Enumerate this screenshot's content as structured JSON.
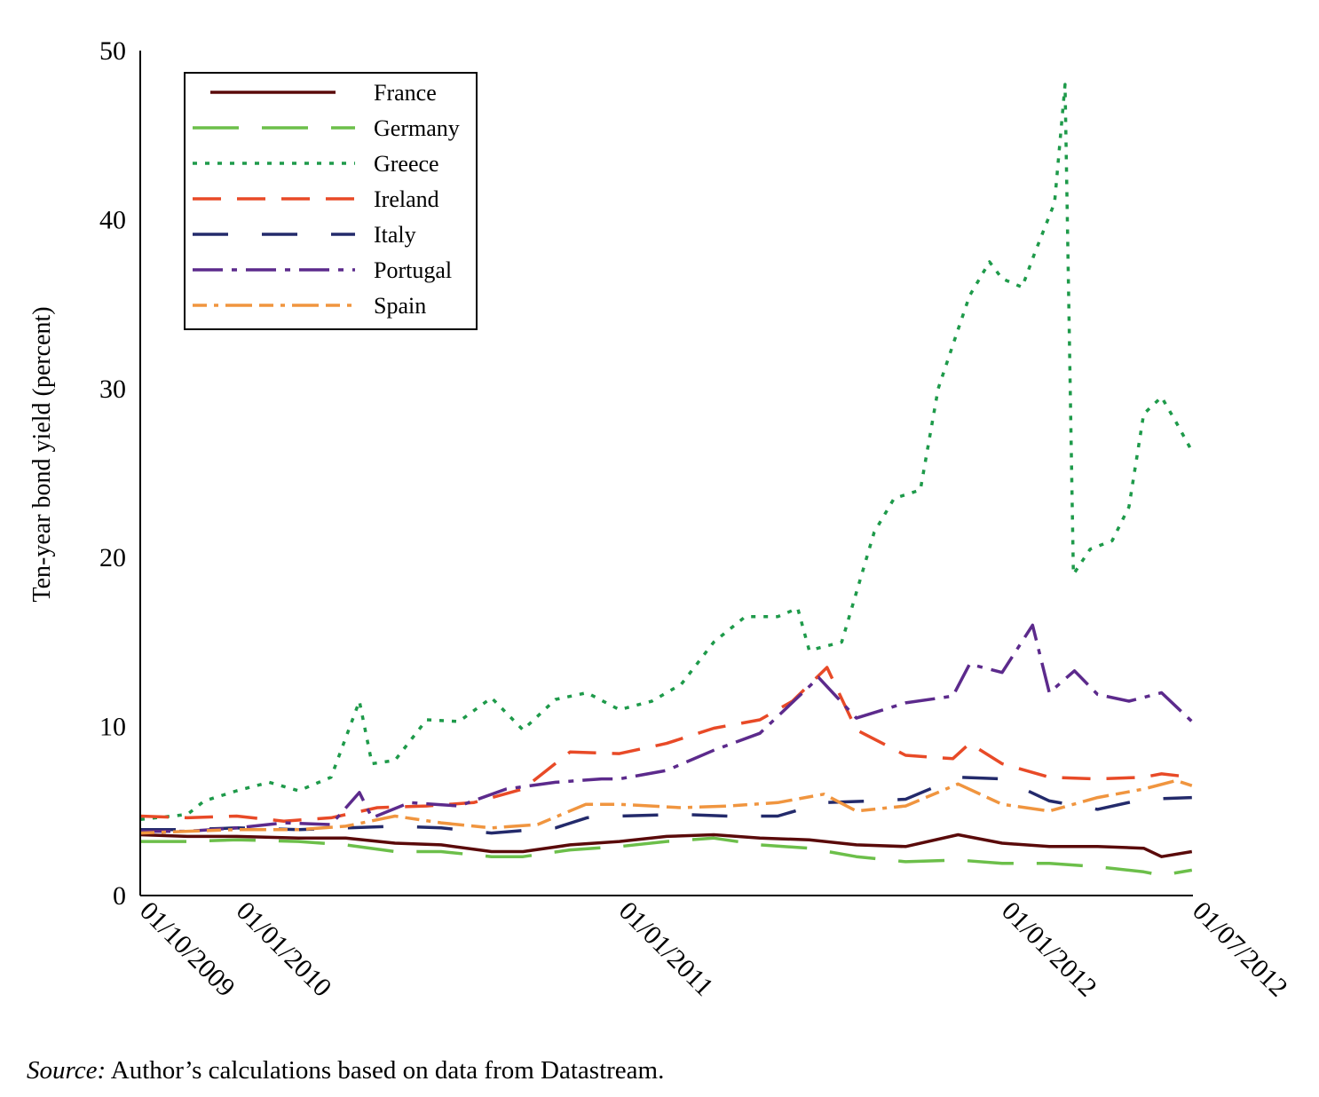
{
  "chart_data": {
    "type": "line",
    "ylabel": "Ten-year bond yield (percent)",
    "xlabel": "",
    "ylim": [
      0,
      50
    ],
    "yticks": [
      0,
      10,
      20,
      30,
      40,
      50
    ],
    "xlim": [
      "2009-10-01",
      "2012-07-01"
    ],
    "xticks": [
      {
        "date": "2009-10-01",
        "label": "01/10/2009"
      },
      {
        "date": "2010-01-01",
        "label": "01/01/2010"
      },
      {
        "date": "2011-01-01",
        "label": "01/01/2011"
      },
      {
        "date": "2012-01-01",
        "label": "01/01/2012"
      },
      {
        "date": "2012-07-01",
        "label": "01/07/2012"
      }
    ],
    "grid": false,
    "legend_position": "top-left",
    "series": [
      {
        "name": "France",
        "color": "#5a0a0a",
        "dash": "solid",
        "points": [
          [
            "2009-10-01",
            3.6
          ],
          [
            "2009-11-15",
            3.5
          ],
          [
            "2010-01-01",
            3.5
          ],
          [
            "2010-03-01",
            3.4
          ],
          [
            "2010-04-15",
            3.4
          ],
          [
            "2010-06-01",
            3.1
          ],
          [
            "2010-07-15",
            3.0
          ],
          [
            "2010-09-01",
            2.6
          ],
          [
            "2010-10-01",
            2.6
          ],
          [
            "2010-11-15",
            3.0
          ],
          [
            "2011-01-01",
            3.2
          ],
          [
            "2011-02-15",
            3.5
          ],
          [
            "2011-04-01",
            3.6
          ],
          [
            "2011-05-15",
            3.4
          ],
          [
            "2011-07-01",
            3.3
          ],
          [
            "2011-08-15",
            3.0
          ],
          [
            "2011-10-01",
            2.9
          ],
          [
            "2011-11-20",
            3.6
          ],
          [
            "2012-01-01",
            3.1
          ],
          [
            "2012-02-15",
            2.9
          ],
          [
            "2012-04-01",
            2.9
          ],
          [
            "2012-05-15",
            2.8
          ],
          [
            "2012-06-01",
            2.3
          ],
          [
            "2012-06-30",
            2.6
          ]
        ]
      },
      {
        "name": "Germany",
        "color": "#6cbf4a",
        "dash": "longdash",
        "points": [
          [
            "2009-10-01",
            3.2
          ],
          [
            "2009-11-15",
            3.2
          ],
          [
            "2010-01-01",
            3.3
          ],
          [
            "2010-03-01",
            3.2
          ],
          [
            "2010-04-15",
            3.0
          ],
          [
            "2010-06-01",
            2.6
          ],
          [
            "2010-07-15",
            2.6
          ],
          [
            "2010-09-01",
            2.3
          ],
          [
            "2010-10-01",
            2.3
          ],
          [
            "2010-11-15",
            2.7
          ],
          [
            "2011-01-01",
            2.9
          ],
          [
            "2011-02-15",
            3.2
          ],
          [
            "2011-04-01",
            3.4
          ],
          [
            "2011-05-15",
            3.0
          ],
          [
            "2011-07-01",
            2.8
          ],
          [
            "2011-08-15",
            2.3
          ],
          [
            "2011-10-01",
            2.0
          ],
          [
            "2011-11-20",
            2.1
          ],
          [
            "2012-01-01",
            1.9
          ],
          [
            "2012-02-15",
            1.9
          ],
          [
            "2012-04-01",
            1.7
          ],
          [
            "2012-05-15",
            1.4
          ],
          [
            "2012-06-01",
            1.2
          ],
          [
            "2012-06-30",
            1.5
          ]
        ]
      },
      {
        "name": "Greece",
        "color": "#1e9a4a",
        "dash": "dotted",
        "points": [
          [
            "2009-10-01",
            4.5
          ],
          [
            "2009-11-15",
            4.8
          ],
          [
            "2009-12-01",
            5.6
          ],
          [
            "2010-01-01",
            6.2
          ],
          [
            "2010-02-01",
            6.7
          ],
          [
            "2010-03-01",
            6.2
          ],
          [
            "2010-04-01",
            7.0
          ],
          [
            "2010-04-28",
            11.5
          ],
          [
            "2010-05-10",
            7.8
          ],
          [
            "2010-06-01",
            8.0
          ],
          [
            "2010-07-01",
            10.4
          ],
          [
            "2010-08-01",
            10.3
          ],
          [
            "2010-09-01",
            11.7
          ],
          [
            "2010-10-01",
            9.8
          ],
          [
            "2010-11-01",
            11.6
          ],
          [
            "2010-12-01",
            12.0
          ],
          [
            "2011-01-01",
            11.0
          ],
          [
            "2011-02-01",
            11.5
          ],
          [
            "2011-03-01",
            12.5
          ],
          [
            "2011-04-01",
            15.0
          ],
          [
            "2011-05-01",
            16.5
          ],
          [
            "2011-06-01",
            16.5
          ],
          [
            "2011-06-20",
            17.0
          ],
          [
            "2011-07-01",
            14.5
          ],
          [
            "2011-08-01",
            15.0
          ],
          [
            "2011-09-01",
            21.5
          ],
          [
            "2011-09-20",
            23.5
          ],
          [
            "2011-10-15",
            24.0
          ],
          [
            "2011-11-01",
            30.0
          ],
          [
            "2011-11-20",
            33.5
          ],
          [
            "2011-12-01",
            35.5
          ],
          [
            "2011-12-20",
            37.5
          ],
          [
            "2012-01-01",
            36.5
          ],
          [
            "2012-01-20",
            36.0
          ],
          [
            "2012-02-01",
            38.0
          ],
          [
            "2012-02-20",
            41.0
          ],
          [
            "2012-03-01",
            48.0
          ],
          [
            "2012-03-09",
            19.0
          ],
          [
            "2012-03-25",
            20.5
          ],
          [
            "2012-04-15",
            21.0
          ],
          [
            "2012-05-01",
            23.0
          ],
          [
            "2012-05-15",
            28.5
          ],
          [
            "2012-06-01",
            29.5
          ],
          [
            "2012-06-15",
            28.0
          ],
          [
            "2012-06-30",
            26.3
          ]
        ]
      },
      {
        "name": "Ireland",
        "color": "#e84a27",
        "dash": "dash",
        "points": [
          [
            "2009-10-01",
            4.7
          ],
          [
            "2009-11-15",
            4.6
          ],
          [
            "2010-01-01",
            4.7
          ],
          [
            "2010-02-15",
            4.4
          ],
          [
            "2010-04-01",
            4.6
          ],
          [
            "2010-05-15",
            5.2
          ],
          [
            "2010-07-01",
            5.3
          ],
          [
            "2010-08-15",
            5.5
          ],
          [
            "2010-10-01",
            6.3
          ],
          [
            "2010-11-15",
            8.5
          ],
          [
            "2011-01-01",
            8.4
          ],
          [
            "2011-02-15",
            9.0
          ],
          [
            "2011-04-01",
            9.9
          ],
          [
            "2011-05-15",
            10.4
          ],
          [
            "2011-06-15",
            11.5
          ],
          [
            "2011-07-18",
            13.5
          ],
          [
            "2011-08-15",
            9.8
          ],
          [
            "2011-10-01",
            8.3
          ],
          [
            "2011-11-15",
            8.1
          ],
          [
            "2011-12-01",
            9.0
          ],
          [
            "2012-01-01",
            7.8
          ],
          [
            "2012-02-15",
            7.0
          ],
          [
            "2012-04-01",
            6.9
          ],
          [
            "2012-05-15",
            7.0
          ],
          [
            "2012-06-01",
            7.2
          ],
          [
            "2012-06-30",
            7.0
          ]
        ]
      },
      {
        "name": "Italy",
        "color": "#232a6b",
        "dash": "longgap",
        "points": [
          [
            "2009-10-01",
            3.9
          ],
          [
            "2009-11-15",
            3.9
          ],
          [
            "2010-01-01",
            4.0
          ],
          [
            "2010-03-01",
            3.9
          ],
          [
            "2010-04-15",
            4.0
          ],
          [
            "2010-06-01",
            4.1
          ],
          [
            "2010-07-15",
            4.0
          ],
          [
            "2010-09-01",
            3.7
          ],
          [
            "2010-11-01",
            4.0
          ],
          [
            "2010-12-01",
            4.6
          ],
          [
            "2011-01-01",
            4.7
          ],
          [
            "2011-03-01",
            4.8
          ],
          [
            "2011-04-15",
            4.7
          ],
          [
            "2011-06-01",
            4.7
          ],
          [
            "2011-07-15",
            5.5
          ],
          [
            "2011-09-01",
            5.6
          ],
          [
            "2011-10-01",
            5.7
          ],
          [
            "2011-11-20",
            7.0
          ],
          [
            "2012-01-01",
            6.9
          ],
          [
            "2012-02-15",
            5.6
          ],
          [
            "2012-04-01",
            5.1
          ],
          [
            "2012-05-15",
            5.7
          ],
          [
            "2012-06-30",
            5.8
          ]
        ]
      },
      {
        "name": "Portugal",
        "color": "#5c2a8c",
        "dash": "dashdot",
        "points": [
          [
            "2009-10-01",
            3.8
          ],
          [
            "2009-11-15",
            3.8
          ],
          [
            "2010-01-01",
            4.0
          ],
          [
            "2010-02-15",
            4.3
          ],
          [
            "2010-04-01",
            4.2
          ],
          [
            "2010-04-28",
            6.1
          ],
          [
            "2010-05-10",
            4.6
          ],
          [
            "2010-06-15",
            5.5
          ],
          [
            "2010-08-01",
            5.3
          ],
          [
            "2010-09-15",
            6.3
          ],
          [
            "2010-11-01",
            6.7
          ],
          [
            "2010-12-15",
            6.9
          ],
          [
            "2011-01-01",
            6.9
          ],
          [
            "2011-02-15",
            7.4
          ],
          [
            "2011-04-01",
            8.6
          ],
          [
            "2011-05-15",
            9.6
          ],
          [
            "2011-07-10",
            12.9
          ],
          [
            "2011-08-15",
            10.5
          ],
          [
            "2011-10-01",
            11.4
          ],
          [
            "2011-11-15",
            11.8
          ],
          [
            "2011-12-01",
            13.7
          ],
          [
            "2012-01-01",
            13.2
          ],
          [
            "2012-01-30",
            16.0
          ],
          [
            "2012-02-15",
            12.0
          ],
          [
            "2012-03-10",
            13.3
          ],
          [
            "2012-04-01",
            11.9
          ],
          [
            "2012-05-01",
            11.5
          ],
          [
            "2012-06-01",
            12.0
          ],
          [
            "2012-06-30",
            10.3
          ]
        ]
      },
      {
        "name": "Spain",
        "color": "#f0953f",
        "dash": "dashdotlong",
        "points": [
          [
            "2009-10-01",
            3.7
          ],
          [
            "2009-11-15",
            3.8
          ],
          [
            "2010-01-01",
            3.9
          ],
          [
            "2010-03-01",
            3.9
          ],
          [
            "2010-04-15",
            4.1
          ],
          [
            "2010-06-01",
            4.7
          ],
          [
            "2010-07-15",
            4.3
          ],
          [
            "2010-09-01",
            4.0
          ],
          [
            "2010-10-15",
            4.2
          ],
          [
            "2010-11-30",
            5.4
          ],
          [
            "2011-01-01",
            5.4
          ],
          [
            "2011-03-01",
            5.2
          ],
          [
            "2011-04-15",
            5.3
          ],
          [
            "2011-06-01",
            5.5
          ],
          [
            "2011-07-15",
            6.0
          ],
          [
            "2011-08-15",
            5.0
          ],
          [
            "2011-10-01",
            5.3
          ],
          [
            "2011-11-20",
            6.6
          ],
          [
            "2012-01-01",
            5.4
          ],
          [
            "2012-02-15",
            5.0
          ],
          [
            "2012-04-01",
            5.8
          ],
          [
            "2012-05-15",
            6.3
          ],
          [
            "2012-06-15",
            6.8
          ],
          [
            "2012-06-30",
            6.5
          ]
        ]
      }
    ]
  },
  "source": {
    "label": "Source:",
    "text": " Author’s calculations based on data from Datastream."
  }
}
